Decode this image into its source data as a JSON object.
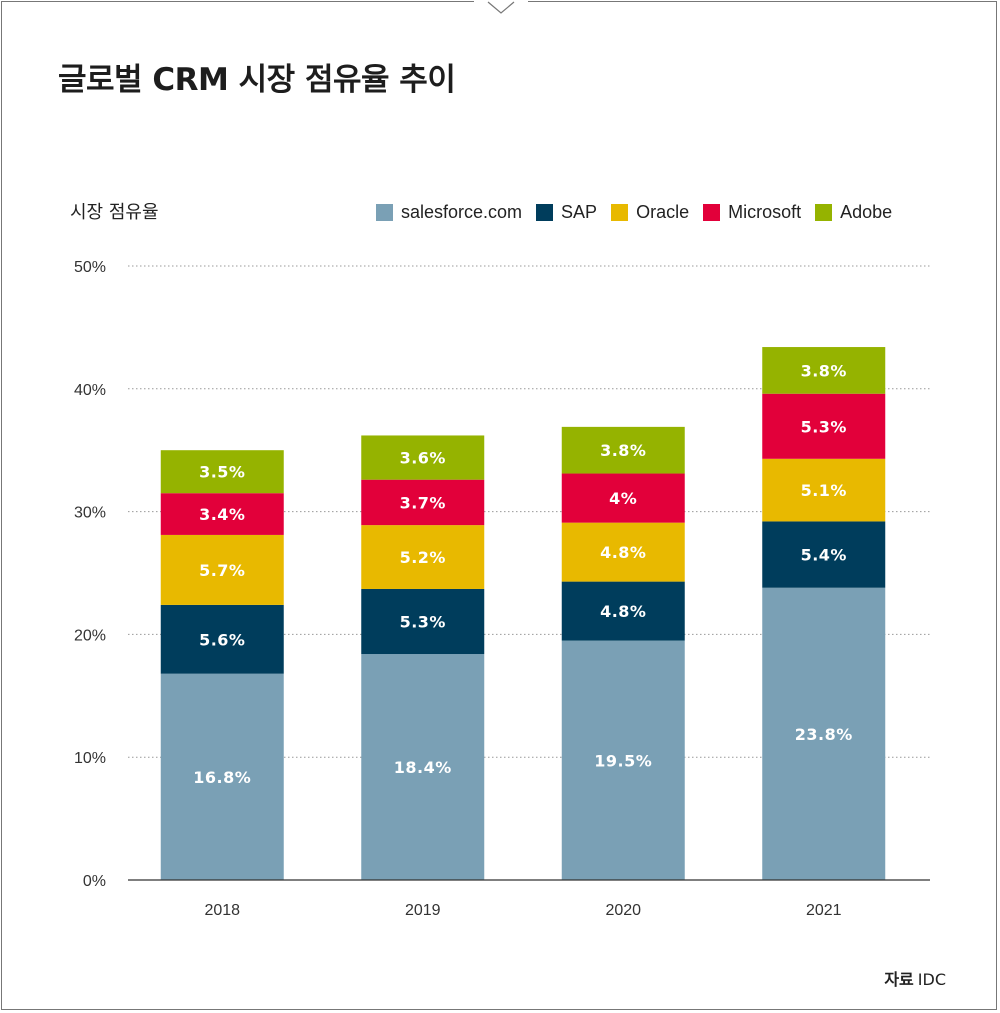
{
  "title": "글로벌 CRM 시장 점유율 추이",
  "source_label": "자료",
  "source_value": "IDC",
  "chart_data": {
    "type": "bar",
    "stacked": true,
    "categories": [
      "2018",
      "2019",
      "2020",
      "2021"
    ],
    "ylabel": "시장 점유율",
    "ylim": [
      0,
      50
    ],
    "yticks": [
      0,
      10,
      20,
      30,
      40,
      50
    ],
    "ytick_labels": [
      "0%",
      "10%",
      "20%",
      "30%",
      "40%",
      "50%"
    ],
    "grid": true,
    "legend_position": "top",
    "series": [
      {
        "name": "salesforce.com",
        "color": "#7aa0b5",
        "values": [
          16.8,
          18.4,
          19.5,
          23.8
        ],
        "labels": [
          "16.8%",
          "18.4%",
          "19.5%",
          "23.8%"
        ]
      },
      {
        "name": "SAP",
        "color": "#003d5c",
        "values": [
          5.6,
          5.3,
          4.8,
          5.4
        ],
        "labels": [
          "5.6%",
          "5.3%",
          "4.8%",
          "5.4%"
        ]
      },
      {
        "name": "Oracle",
        "color": "#e8b900",
        "values": [
          5.7,
          5.2,
          4.8,
          5.1
        ],
        "labels": [
          "5.7%",
          "5.2%",
          "4.8%",
          "5.1%"
        ]
      },
      {
        "name": "Microsoft",
        "color": "#e2003a",
        "values": [
          3.4,
          3.7,
          4,
          5.3
        ],
        "labels": [
          "3.4%",
          "3.7%",
          "4%",
          "5.3%"
        ]
      },
      {
        "name": "Adobe",
        "color": "#95b300",
        "values": [
          3.5,
          3.6,
          3.8,
          3.8
        ],
        "labels": [
          "3.5%",
          "3.6%",
          "3.8%",
          "3.8%"
        ]
      }
    ]
  }
}
